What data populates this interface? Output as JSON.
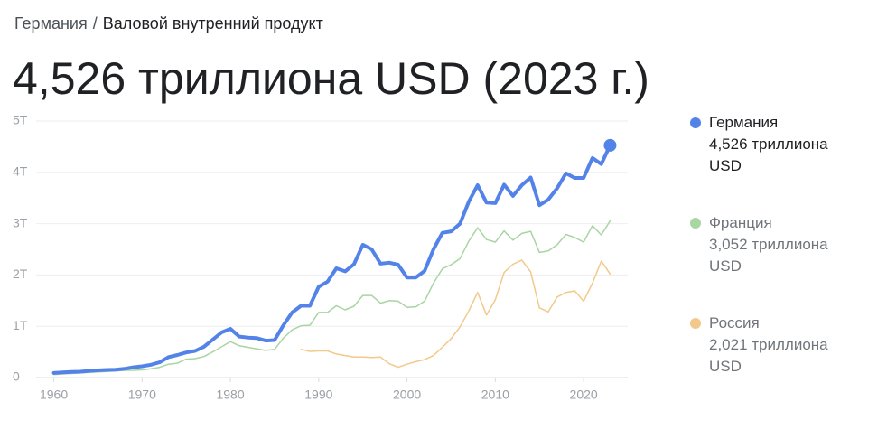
{
  "breadcrumb": [
    "Германия",
    "/",
    "Валовой внутренний продукт"
  ],
  "chart_data": {
    "type": "line",
    "title": "4,526 триллиона USD (2023 г.)",
    "x": [
      1960,
      1961,
      1962,
      1963,
      1964,
      1965,
      1966,
      1967,
      1968,
      1969,
      1970,
      1971,
      1972,
      1973,
      1974,
      1975,
      1976,
      1977,
      1978,
      1979,
      1980,
      1981,
      1982,
      1983,
      1984,
      1985,
      1986,
      1987,
      1988,
      1989,
      1990,
      1991,
      1992,
      1993,
      1994,
      1995,
      1996,
      1997,
      1998,
      1999,
      2000,
      2001,
      2002,
      2003,
      2004,
      2005,
      2006,
      2007,
      2008,
      2009,
      2010,
      2011,
      2012,
      2013,
      2014,
      2015,
      2016,
      2017,
      2018,
      2019,
      2020,
      2021,
      2022,
      2023
    ],
    "xlim": [
      1958,
      2025
    ],
    "xticks": [
      1960,
      1970,
      1980,
      1990,
      2000,
      2010,
      2020
    ],
    "ylim": [
      0,
      5
    ],
    "yticks": [
      0,
      {
        "value": 1,
        "label": "1T"
      },
      {
        "value": 2,
        "label": "2T"
      },
      {
        "value": 3,
        "label": "3T"
      },
      {
        "value": 4,
        "label": "4T"
      },
      {
        "value": 5,
        "label": "5T"
      }
    ],
    "grid": true,
    "series": [
      {
        "name": "Германия",
        "color": "#5383e8",
        "legend_value": "4,526 триллиона USD",
        "values": [
          0.09,
          0.1,
          0.11,
          0.115,
          0.13,
          0.14,
          0.15,
          0.155,
          0.17,
          0.2,
          0.22,
          0.25,
          0.3,
          0.4,
          0.44,
          0.49,
          0.52,
          0.6,
          0.74,
          0.88,
          0.95,
          0.8,
          0.78,
          0.77,
          0.72,
          0.73,
          1.02,
          1.27,
          1.4,
          1.4,
          1.77,
          1.87,
          2.13,
          2.07,
          2.21,
          2.59,
          2.5,
          2.22,
          2.24,
          2.2,
          1.95,
          1.95,
          2.08,
          2.5,
          2.82,
          2.85,
          3.0,
          3.43,
          3.75,
          3.41,
          3.4,
          3.76,
          3.54,
          3.75,
          3.9,
          3.36,
          3.47,
          3.69,
          3.98,
          3.89,
          3.89,
          4.28,
          4.16,
          4.526
        ]
      },
      {
        "name": "Франция",
        "color": "#a8d5a2",
        "legend_value": "3,052 триллиона USD",
        "values": [
          0.06,
          0.07,
          0.08,
          0.09,
          0.1,
          0.11,
          0.12,
          0.13,
          0.14,
          0.14,
          0.15,
          0.17,
          0.2,
          0.26,
          0.28,
          0.36,
          0.37,
          0.41,
          0.5,
          0.6,
          0.7,
          0.62,
          0.59,
          0.56,
          0.53,
          0.55,
          0.77,
          0.93,
          1.01,
          1.02,
          1.27,
          1.27,
          1.4,
          1.32,
          1.39,
          1.6,
          1.6,
          1.45,
          1.5,
          1.49,
          1.37,
          1.38,
          1.49,
          1.84,
          2.12,
          2.2,
          2.32,
          2.66,
          2.92,
          2.69,
          2.64,
          2.86,
          2.68,
          2.81,
          2.85,
          2.44,
          2.47,
          2.59,
          2.79,
          2.73,
          2.64,
          2.96,
          2.78,
          3.052
        ]
      },
      {
        "name": "Россия",
        "color": "#f2c98a",
        "legend_value": "2,021 триллиона USD",
        "values": [
          null,
          null,
          null,
          null,
          null,
          null,
          null,
          null,
          null,
          null,
          null,
          null,
          null,
          null,
          null,
          null,
          null,
          null,
          null,
          null,
          null,
          null,
          null,
          null,
          null,
          null,
          null,
          null,
          0.55,
          0.51,
          0.52,
          0.52,
          0.46,
          0.43,
          0.4,
          0.4,
          0.39,
          0.4,
          0.27,
          0.2,
          0.26,
          0.31,
          0.35,
          0.43,
          0.59,
          0.76,
          0.99,
          1.3,
          1.66,
          1.22,
          1.52,
          2.05,
          2.21,
          2.29,
          2.06,
          1.36,
          1.28,
          1.57,
          1.66,
          1.69,
          1.49,
          1.84,
          2.27,
          2.021
        ]
      }
    ]
  }
}
